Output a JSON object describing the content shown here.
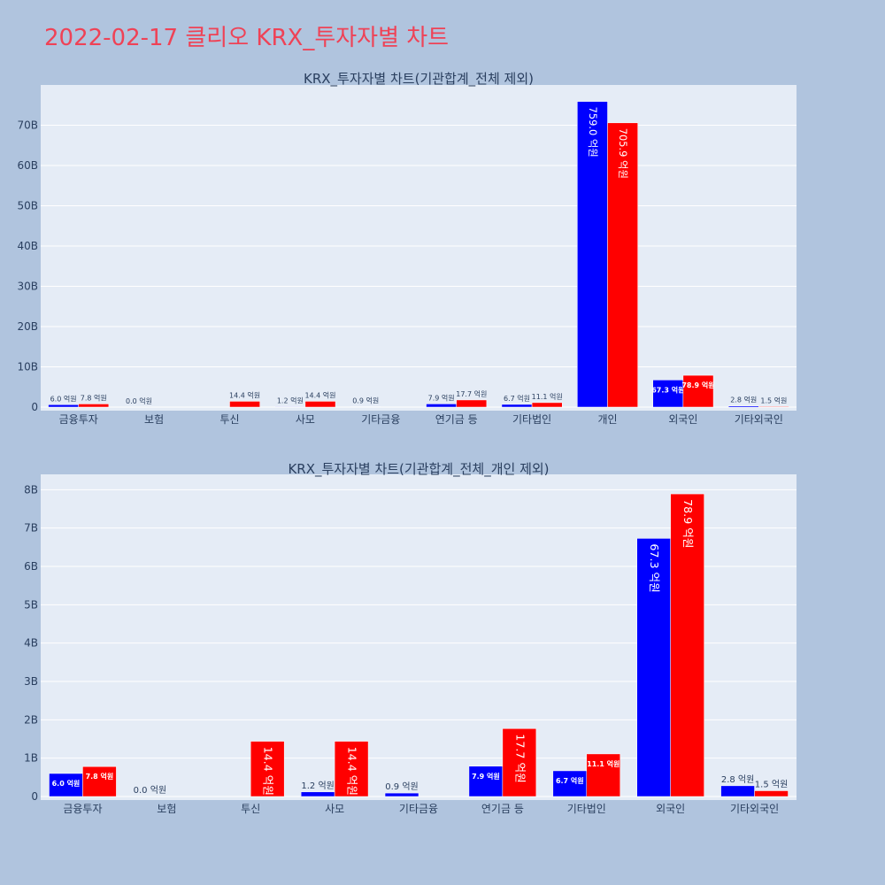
{
  "title": "2022-02-17 클리오 KRX_투자자별 차트",
  "colors": {
    "buy": "#0000ff",
    "sell": "#ff0000",
    "plot_bg": "#e5ecf6",
    "page_bg": "#b0c4de",
    "title": "#ef4256"
  },
  "chart_data": [
    {
      "type": "bar",
      "title": "KRX_투자자별 차트(기관합계_전체 제외)",
      "categories": [
        "금융투자",
        "보험",
        "투신",
        "사모",
        "기타금융",
        "연기금 등",
        "기타법인",
        "개인",
        "외국인",
        "기타외국인"
      ],
      "series": [
        {
          "values": [
            0.6,
            0.0,
            0.0,
            0.12,
            0.09,
            0.79,
            0.67,
            75.9,
            6.73,
            0.28
          ],
          "labels": [
            "6.0 억원",
            "0.0 억원",
            "",
            "1.2 억원",
            "0.9 억원",
            "7.9 억원",
            "6.7 억원",
            "759.0 억원",
            "67.3 억원",
            "2.8 억원"
          ]
        },
        {
          "values": [
            0.78,
            0.0,
            1.44,
            1.44,
            0.0,
            1.77,
            1.11,
            70.59,
            7.89,
            0.15
          ],
          "labels": [
            "7.8 억원",
            "",
            "14.4 억원",
            "14.4 억원",
            "",
            "17.7 억원",
            "11.1 억원",
            "705.9 억원",
            "78.9 억원",
            "1.5 억원"
          ]
        }
      ],
      "yticks": [
        "0",
        "10B",
        "20B",
        "30B",
        "40B",
        "50B",
        "60B",
        "70B"
      ],
      "ylim": [
        0,
        80
      ],
      "grid": true
    },
    {
      "type": "bar",
      "title": "KRX_투자자별 차트(기관합계_전체_개인 제외)",
      "categories": [
        "금융투자",
        "보험",
        "투신",
        "사모",
        "기타금융",
        "연기금 등",
        "기타법인",
        "외국인",
        "기타외국인"
      ],
      "series": [
        {
          "values": [
            0.6,
            0.0,
            0.0,
            0.12,
            0.09,
            0.79,
            0.67,
            6.73,
            0.28
          ],
          "labels": [
            "6.0 억원",
            "0.0 억원",
            "",
            "1.2 억원",
            "0.9 억원",
            "7.9 억원",
            "6.7 억원",
            "67.3 억원",
            "2.8 억원"
          ]
        },
        {
          "values": [
            0.78,
            0.0,
            1.44,
            1.44,
            0.0,
            1.77,
            1.11,
            7.89,
            0.15
          ],
          "labels": [
            "7.8 억원",
            "",
            "14.4 억원",
            "14.4 억원",
            "",
            "17.7 억원",
            "11.1 억원",
            "78.9 억원",
            "1.5 억원"
          ]
        }
      ],
      "yticks": [
        "0",
        "1B",
        "2B",
        "3B",
        "4B",
        "5B",
        "6B",
        "7B",
        "8B"
      ],
      "ylim": [
        0,
        8.4
      ],
      "grid": true
    }
  ]
}
